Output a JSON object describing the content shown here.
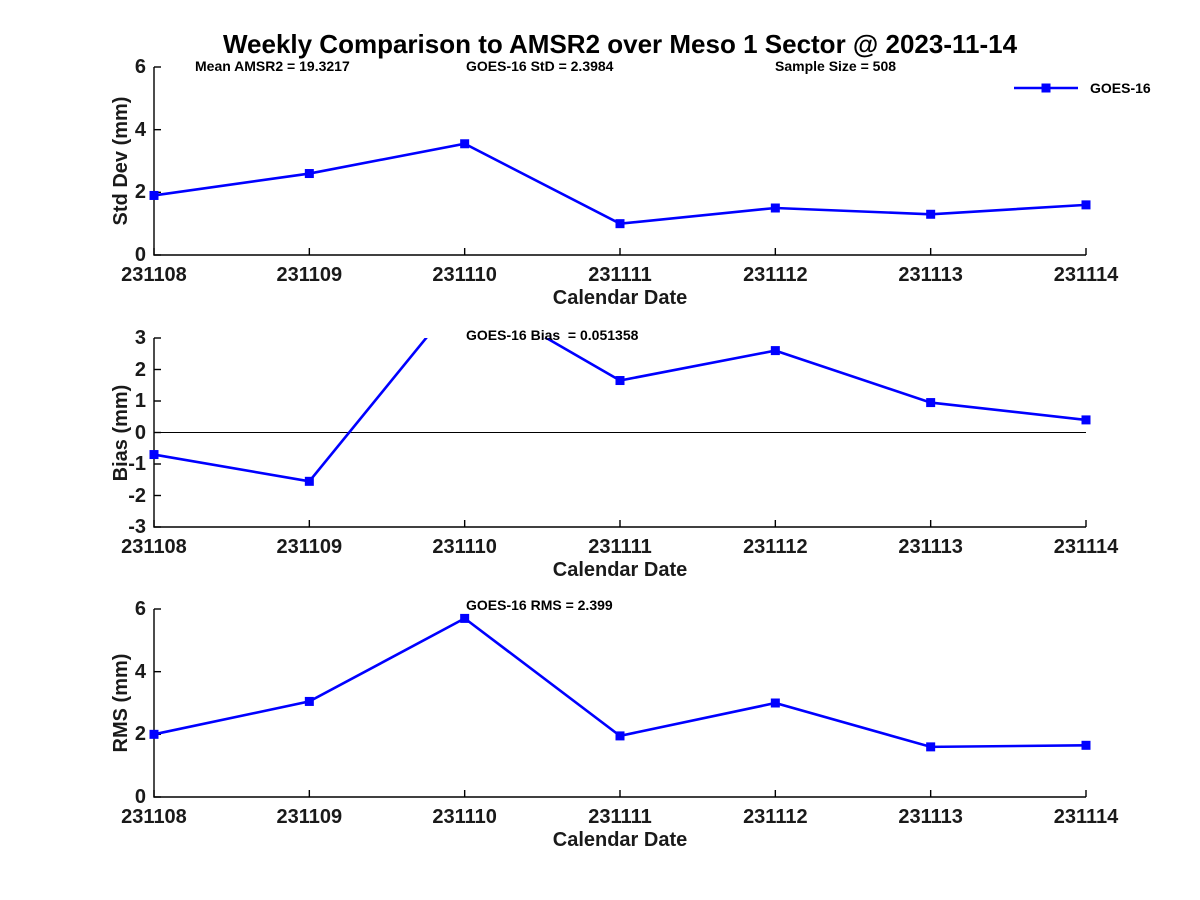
{
  "figure": {
    "title": "Weekly Comparison to AMSR2 over Meso 1 Sector @ 2023-11-14",
    "background_color": "#ffffff",
    "line_color": "#0000ff",
    "axis_color": "#000000",
    "tick_text_color": "#1a1a1a",
    "annotation_text_color": "#000000",
    "legend": {
      "label": "GOES-16",
      "position": "top-right",
      "marker": "filled-square"
    }
  },
  "chart_data": [
    {
      "type": "line",
      "id": "std-dev",
      "categories": [
        "231108",
        "231109",
        "231110",
        "231111",
        "231112",
        "231113",
        "231114"
      ],
      "series": [
        {
          "name": "GOES-16",
          "values": [
            1.9,
            2.6,
            3.55,
            1.0,
            1.5,
            1.3,
            1.6
          ]
        }
      ],
      "xlabel": "Calendar Date",
      "ylabel": "Std Dev (mm)",
      "ylim": [
        0,
        6
      ],
      "yticks": [
        0,
        2,
        4,
        6
      ],
      "grid": false,
      "zero_line": false,
      "annotations": [
        "Mean AMSR2 = 19.3217",
        "GOES-16 StD = 2.3984",
        "Sample Size = 508"
      ]
    },
    {
      "type": "line",
      "id": "bias",
      "categories": [
        "231108",
        "231109",
        "231110",
        "231111",
        "231112",
        "231113",
        "231114"
      ],
      "series": [
        {
          "name": "GOES-16",
          "values": [
            -0.7,
            -1.55,
            4.5,
            1.65,
            2.6,
            0.95,
            0.4
          ]
        }
      ],
      "xlabel": "Calendar Date",
      "ylabel": "Bias (mm)",
      "ylim": [
        -3,
        3
      ],
      "yticks": [
        -3,
        -2,
        -1,
        0,
        1,
        2,
        3
      ],
      "grid": false,
      "zero_line": true,
      "clip_note": "231110 value is off-scale above ylim; line is clipped at y=3",
      "annotations": [
        "GOES-16 Bias  = 0.051358"
      ]
    },
    {
      "type": "line",
      "id": "rms",
      "categories": [
        "231108",
        "231109",
        "231110",
        "231111",
        "231112",
        "231113",
        "231114"
      ],
      "series": [
        {
          "name": "GOES-16",
          "values": [
            2.0,
            3.05,
            5.7,
            1.95,
            3.0,
            1.6,
            1.65
          ]
        }
      ],
      "xlabel": "Calendar Date",
      "ylabel": "RMS (mm)",
      "ylim": [
        0,
        6
      ],
      "yticks": [
        0,
        2,
        4,
        6
      ],
      "grid": false,
      "zero_line": false,
      "annotations": [
        "GOES-16 RMS = 2.399"
      ]
    }
  ]
}
